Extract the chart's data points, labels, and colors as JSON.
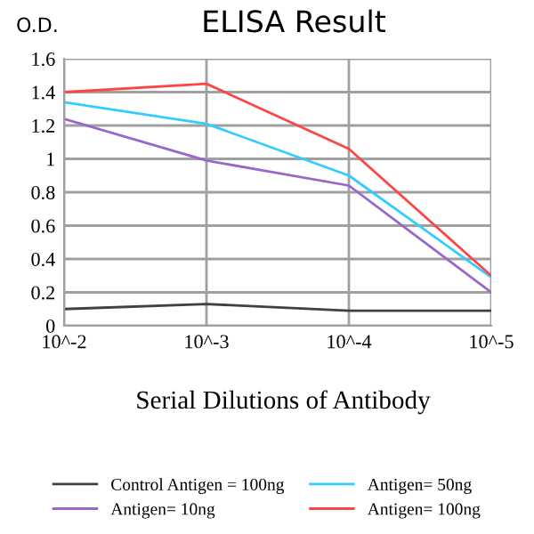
{
  "chart_data": {
    "type": "line",
    "title": "ELISA Result",
    "ylabel": "O.D.",
    "xlabel": "Serial Dilutions of Antibody",
    "categories": [
      "10^-2",
      "10^-3",
      "10^-4",
      "10^-5"
    ],
    "series": [
      {
        "name": "Control Antigen = 100ng",
        "color": "#404040",
        "values": [
          0.1,
          0.13,
          0.09,
          0.09
        ]
      },
      {
        "name": "Antigen= 10ng",
        "color": "#9966cc",
        "values": [
          1.24,
          0.99,
          0.84,
          0.2
        ]
      },
      {
        "name": "Antigen= 50ng",
        "color": "#33ccff",
        "values": [
          1.34,
          1.21,
          0.9,
          0.29
        ]
      },
      {
        "name": "Antigen= 100ng",
        "color": "#ff4444",
        "values": [
          1.4,
          1.45,
          1.06,
          0.3
        ]
      }
    ],
    "ylim": [
      0,
      1.6
    ],
    "yticks": [
      0,
      0.2,
      0.4,
      0.6,
      0.8,
      1,
      1.2,
      1.4,
      1.6
    ],
    "grid": true,
    "legend": "bottom",
    "marker": "none"
  }
}
